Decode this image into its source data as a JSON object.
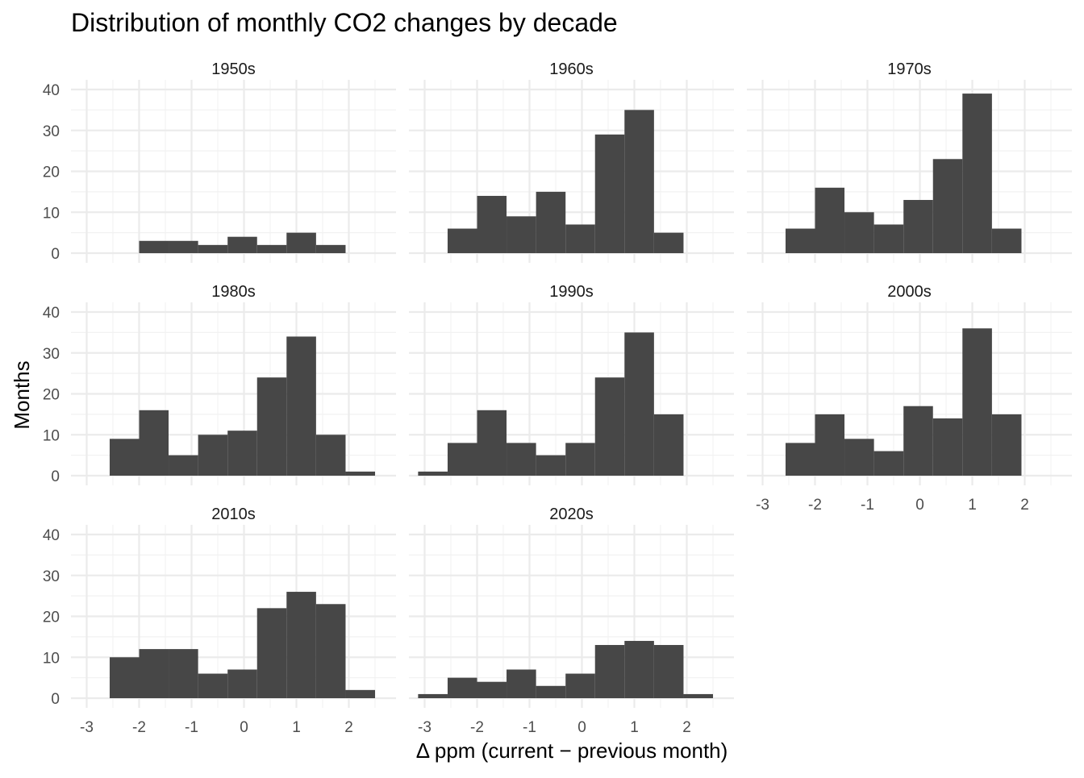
{
  "chart_data": {
    "type": "bar",
    "title": "Distribution of monthly CO2 changes by decade",
    "xlabel": "Δ ppm (current − previous month)",
    "ylabel": "Months",
    "xlim": [
      -3.3,
      2.9
    ],
    "ylim": [
      0,
      40
    ],
    "x_ticks": [
      "-3",
      "-2",
      "-1",
      "0",
      "1",
      "2"
    ],
    "y_ticks": [
      "0",
      "10",
      "20",
      "30",
      "40"
    ],
    "bin_edges": [
      -3.125,
      -2.562,
      -2.0,
      -1.438,
      -0.875,
      -0.312,
      0.25,
      0.812,
      1.375,
      1.938,
      2.5
    ],
    "grid": true,
    "bar_color": "#474747",
    "panels": [
      {
        "name": "1950s",
        "values": [
          0,
          0,
          3,
          3,
          2,
          4,
          2,
          5,
          2,
          0
        ]
      },
      {
        "name": "1960s",
        "values": [
          0,
          6,
          14,
          9,
          15,
          7,
          29,
          35,
          5,
          0
        ]
      },
      {
        "name": "1970s",
        "values": [
          0,
          6,
          16,
          10,
          7,
          13,
          23,
          39,
          6,
          0
        ]
      },
      {
        "name": "1980s",
        "values": [
          0,
          9,
          16,
          5,
          10,
          11,
          24,
          34,
          10,
          1
        ]
      },
      {
        "name": "1990s",
        "values": [
          1,
          8,
          16,
          8,
          5,
          8,
          24,
          35,
          15,
          0
        ]
      },
      {
        "name": "2000s",
        "values": [
          0,
          8,
          15,
          9,
          6,
          17,
          14,
          36,
          15,
          0
        ]
      },
      {
        "name": "2010s",
        "values": [
          0,
          10,
          12,
          12,
          6,
          7,
          22,
          26,
          23,
          2
        ]
      },
      {
        "name": "2020s",
        "values": [
          1,
          5,
          4,
          7,
          3,
          6,
          13,
          14,
          13,
          1
        ]
      }
    ]
  }
}
